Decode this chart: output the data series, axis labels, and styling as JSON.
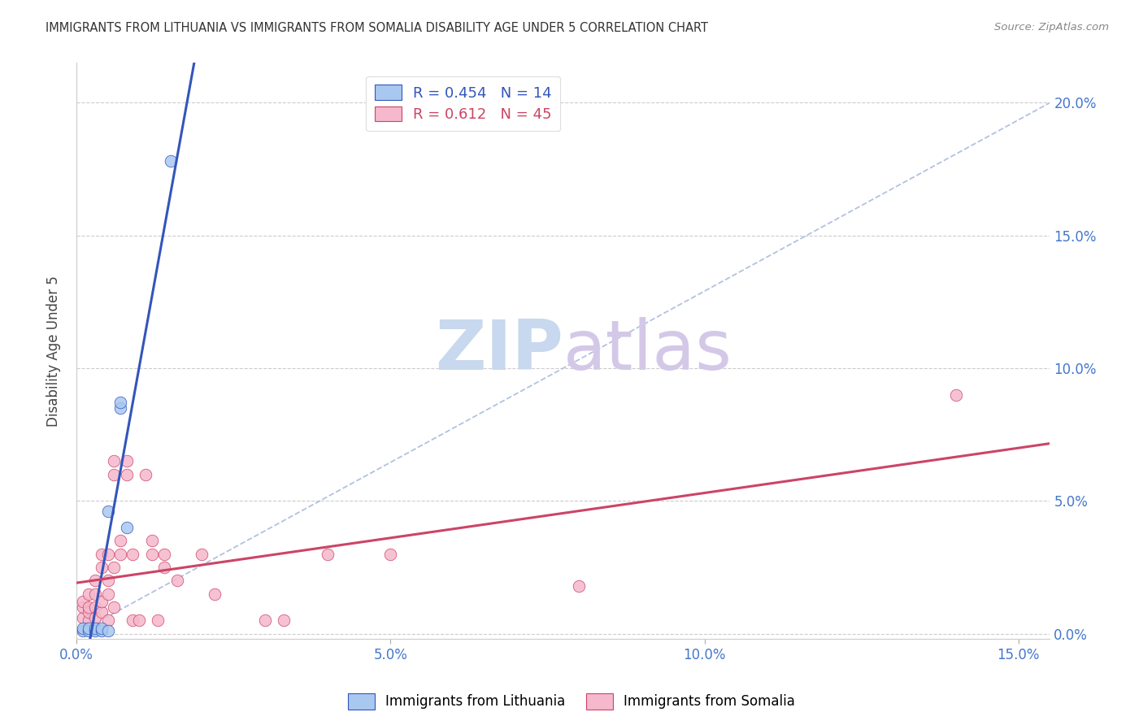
{
  "title": "IMMIGRANTS FROM LITHUANIA VS IMMIGRANTS FROM SOMALIA DISABILITY AGE UNDER 5 CORRELATION CHART",
  "source": "Source: ZipAtlas.com",
  "ylabel": "Disability Age Under 5",
  "xlim": [
    0.0,
    0.155
  ],
  "ylim": [
    -0.002,
    0.215
  ],
  "x_tick_vals": [
    0.0,
    0.05,
    0.1,
    0.15
  ],
  "y_tick_vals": [
    0.0,
    0.05,
    0.1,
    0.15,
    0.2
  ],
  "legend_lith": "R = 0.454   N = 14",
  "legend_som": "R = 0.612   N = 45",
  "color_lith": "#a8c8f0",
  "color_som": "#f5b8cc",
  "trend_lith_color": "#3355bb",
  "trend_som_color": "#cc4466",
  "diagonal_color": "#aabbdd",
  "watermark_color": "#dde8f5",
  "lith_points": [
    [
      0.001,
      0.001
    ],
    [
      0.001,
      0.002
    ],
    [
      0.002,
      0.001
    ],
    [
      0.002,
      0.002
    ],
    [
      0.003,
      0.001
    ],
    [
      0.003,
      0.002
    ],
    [
      0.004,
      0.001
    ],
    [
      0.004,
      0.002
    ],
    [
      0.005,
      0.001
    ],
    [
      0.005,
      0.046
    ],
    [
      0.007,
      0.085
    ],
    [
      0.007,
      0.087
    ],
    [
      0.008,
      0.04
    ],
    [
      0.015,
      0.178
    ]
  ],
  "som_points": [
    [
      0.001,
      0.006
    ],
    [
      0.001,
      0.01
    ],
    [
      0.001,
      0.012
    ],
    [
      0.002,
      0.005
    ],
    [
      0.002,
      0.008
    ],
    [
      0.002,
      0.01
    ],
    [
      0.002,
      0.015
    ],
    [
      0.003,
      0.006
    ],
    [
      0.003,
      0.01
    ],
    [
      0.003,
      0.015
    ],
    [
      0.003,
      0.02
    ],
    [
      0.004,
      0.008
    ],
    [
      0.004,
      0.012
    ],
    [
      0.004,
      0.025
    ],
    [
      0.004,
      0.03
    ],
    [
      0.005,
      0.005
    ],
    [
      0.005,
      0.015
    ],
    [
      0.005,
      0.02
    ],
    [
      0.005,
      0.03
    ],
    [
      0.006,
      0.01
    ],
    [
      0.006,
      0.025
    ],
    [
      0.006,
      0.06
    ],
    [
      0.006,
      0.065
    ],
    [
      0.007,
      0.03
    ],
    [
      0.007,
      0.035
    ],
    [
      0.008,
      0.06
    ],
    [
      0.008,
      0.065
    ],
    [
      0.009,
      0.005
    ],
    [
      0.009,
      0.03
    ],
    [
      0.01,
      0.005
    ],
    [
      0.011,
      0.06
    ],
    [
      0.012,
      0.03
    ],
    [
      0.012,
      0.035
    ],
    [
      0.013,
      0.005
    ],
    [
      0.014,
      0.025
    ],
    [
      0.014,
      0.03
    ],
    [
      0.016,
      0.02
    ],
    [
      0.02,
      0.03
    ],
    [
      0.022,
      0.015
    ],
    [
      0.03,
      0.005
    ],
    [
      0.033,
      0.005
    ],
    [
      0.04,
      0.03
    ],
    [
      0.05,
      0.03
    ],
    [
      0.08,
      0.018
    ],
    [
      0.14,
      0.09
    ]
  ]
}
